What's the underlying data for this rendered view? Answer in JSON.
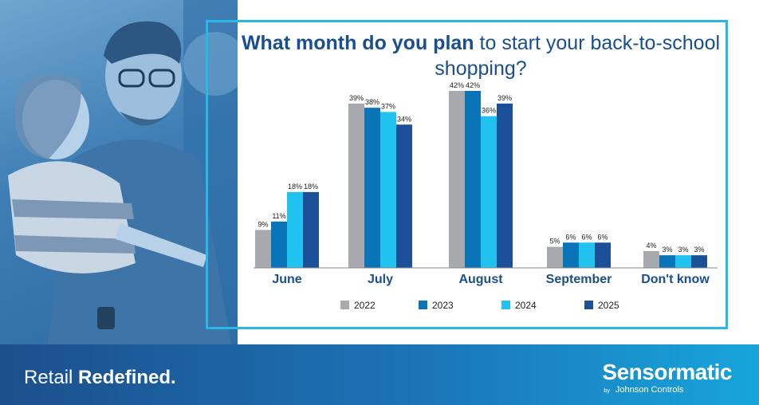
{
  "title": {
    "bold": "What month do you plan",
    "regular": "to start your back-to-school shopping?"
  },
  "chart_data": {
    "type": "bar",
    "categories": [
      "June",
      "July",
      "August",
      "September",
      "Don't know"
    ],
    "series": [
      {
        "name": "2022",
        "color": "#a7a9ac",
        "values": [
          9,
          39,
          42,
          5,
          4
        ]
      },
      {
        "name": "2023",
        "color": "#0a74b8",
        "values": [
          11,
          38,
          42,
          6,
          3
        ]
      },
      {
        "name": "2024",
        "color": "#20c3f0",
        "values": [
          18,
          37,
          36,
          6,
          3
        ]
      },
      {
        "name": "2025",
        "color": "#1b4f98",
        "values": [
          18,
          34,
          39,
          6,
          3
        ]
      }
    ],
    "value_suffix": "%",
    "ylim": [
      0,
      42
    ],
    "legend_position": "bottom",
    "grid": false
  },
  "footer": {
    "tagline_regular": "Retail",
    "tagline_bold": "Redefined."
  },
  "brand": {
    "name": "Sensormatic",
    "by": "by",
    "parent": "Johnson Controls"
  }
}
